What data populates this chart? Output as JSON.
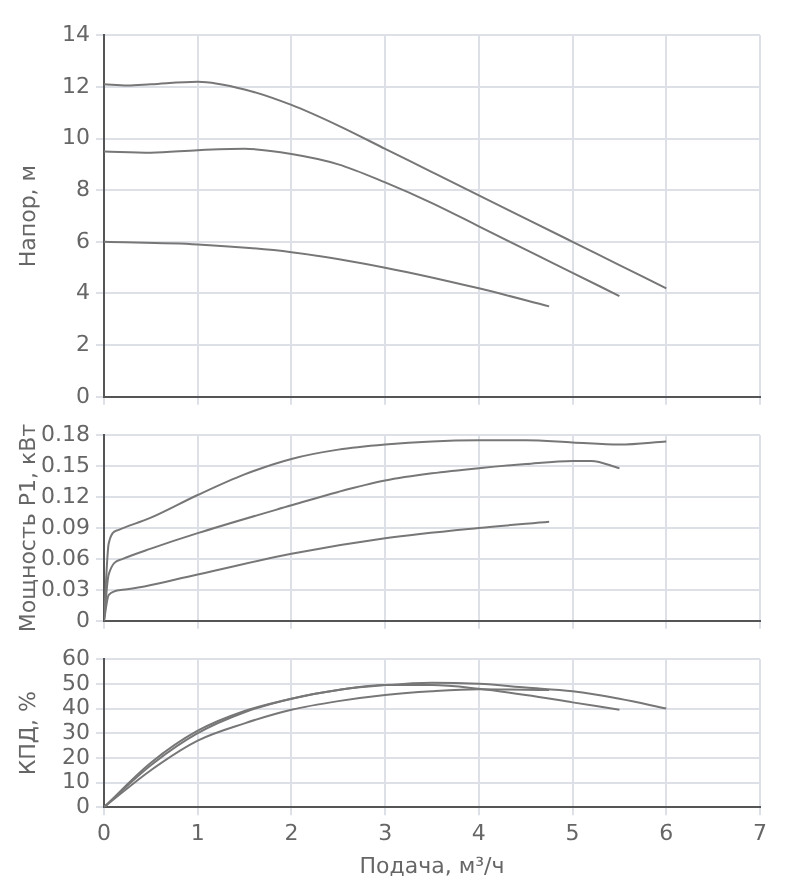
{
  "chart_data": [
    {
      "type": "line",
      "ylabel": "Напор, м",
      "xlim": [
        0,
        7
      ],
      "xticks": [
        0,
        1,
        2,
        3,
        4,
        5,
        6,
        7
      ],
      "ylim": [
        0,
        14
      ],
      "yticks": [
        0,
        2,
        4,
        6,
        8,
        10,
        12,
        14
      ],
      "grid": true,
      "tick_labels": "y",
      "series": [
        {
          "color": "#777777",
          "x": [
            0,
            0.25,
            0.5,
            1,
            1.5,
            2,
            2.5,
            3,
            3.5,
            4,
            4.5,
            5,
            5.5,
            6
          ],
          "values": [
            12.1,
            12.05,
            12.1,
            12.2,
            11.9,
            11.3,
            10.5,
            9.6,
            8.7,
            7.8,
            6.9,
            6.0,
            5.1,
            4.2
          ]
        },
        {
          "color": "#777777",
          "x": [
            0,
            0.5,
            1,
            1.5,
            2,
            2.5,
            3,
            3.5,
            4,
            4.5,
            5,
            5.5
          ],
          "values": [
            9.5,
            9.45,
            9.55,
            9.6,
            9.4,
            9.0,
            8.3,
            7.5,
            6.6,
            5.7,
            4.8,
            3.9
          ]
        },
        {
          "color": "#777777",
          "x": [
            0,
            1,
            2,
            3,
            4,
            4.75
          ],
          "values": [
            6.0,
            5.9,
            5.6,
            5.0,
            4.2,
            3.5
          ]
        }
      ]
    },
    {
      "type": "line",
      "ylabel": "Мощность P1, кВт",
      "xlim": [
        0,
        7
      ],
      "xticks": [
        0,
        1,
        2,
        3,
        4,
        5,
        6,
        7
      ],
      "ylim": [
        0,
        0.18
      ],
      "yticks": [
        0,
        0.03,
        0.06,
        0.09,
        0.12,
        0.15,
        0.18
      ],
      "grid": true,
      "tick_labels": "y",
      "series": [
        {
          "color": "#777777",
          "x": [
            0,
            0.05,
            0.15,
            0.5,
            1,
            1.5,
            2,
            2.5,
            3,
            3.5,
            4,
            4.5,
            5,
            5.5,
            6
          ],
          "values": [
            0,
            0.075,
            0.088,
            0.1,
            0.122,
            0.142,
            0.157,
            0.166,
            0.171,
            0.174,
            0.175,
            0.175,
            0.173,
            0.171,
            0.174
          ]
        },
        {
          "color": "#777777",
          "x": [
            0,
            0.05,
            0.2,
            0.5,
            1,
            2,
            2.5,
            3,
            3.5,
            4,
            4.5,
            5,
            5.2,
            5.5
          ],
          "values": [
            0,
            0.045,
            0.06,
            0.07,
            0.085,
            0.112,
            0.125,
            0.136,
            0.143,
            0.148,
            0.152,
            0.155,
            0.155,
            0.148
          ]
        },
        {
          "color": "#777777",
          "x": [
            0,
            0.05,
            0.2,
            1,
            2,
            3,
            4,
            4.75
          ],
          "values": [
            0,
            0.025,
            0.03,
            0.045,
            0.065,
            0.08,
            0.09,
            0.096
          ]
        }
      ]
    },
    {
      "type": "line",
      "ylabel": "КПД, %",
      "xlabel": "Подача, м³/ч",
      "xlim": [
        0,
        7
      ],
      "xticks": [
        0,
        1,
        2,
        3,
        4,
        5,
        6,
        7
      ],
      "ylim": [
        0,
        60
      ],
      "yticks": [
        0,
        10,
        20,
        30,
        40,
        50,
        60
      ],
      "grid": true,
      "series": [
        {
          "color": "#777777",
          "x": [
            0,
            0.5,
            1,
            1.5,
            2,
            2.5,
            3,
            3.5,
            4,
            4.5,
            5,
            5.5,
            6
          ],
          "values": [
            0,
            18,
            31,
            39,
            44,
            47.5,
            49.5,
            50.5,
            50,
            48.5,
            47,
            44,
            40
          ]
        },
        {
          "color": "#777777",
          "x": [
            0,
            0.5,
            1,
            1.5,
            2,
            2.5,
            3,
            3.5,
            4,
            4.5,
            5,
            5.5
          ],
          "values": [
            0,
            17,
            30,
            38.5,
            44,
            47.5,
            49.5,
            49.5,
            48,
            45.5,
            42.5,
            39.5
          ]
        },
        {
          "color": "#777777",
          "x": [
            0,
            0.5,
            1,
            1.5,
            2,
            2.5,
            3,
            3.5,
            4,
            4.75
          ],
          "values": [
            0,
            15,
            27,
            34,
            39.5,
            43,
            45.5,
            47,
            47.8,
            47.5
          ]
        }
      ]
    }
  ]
}
